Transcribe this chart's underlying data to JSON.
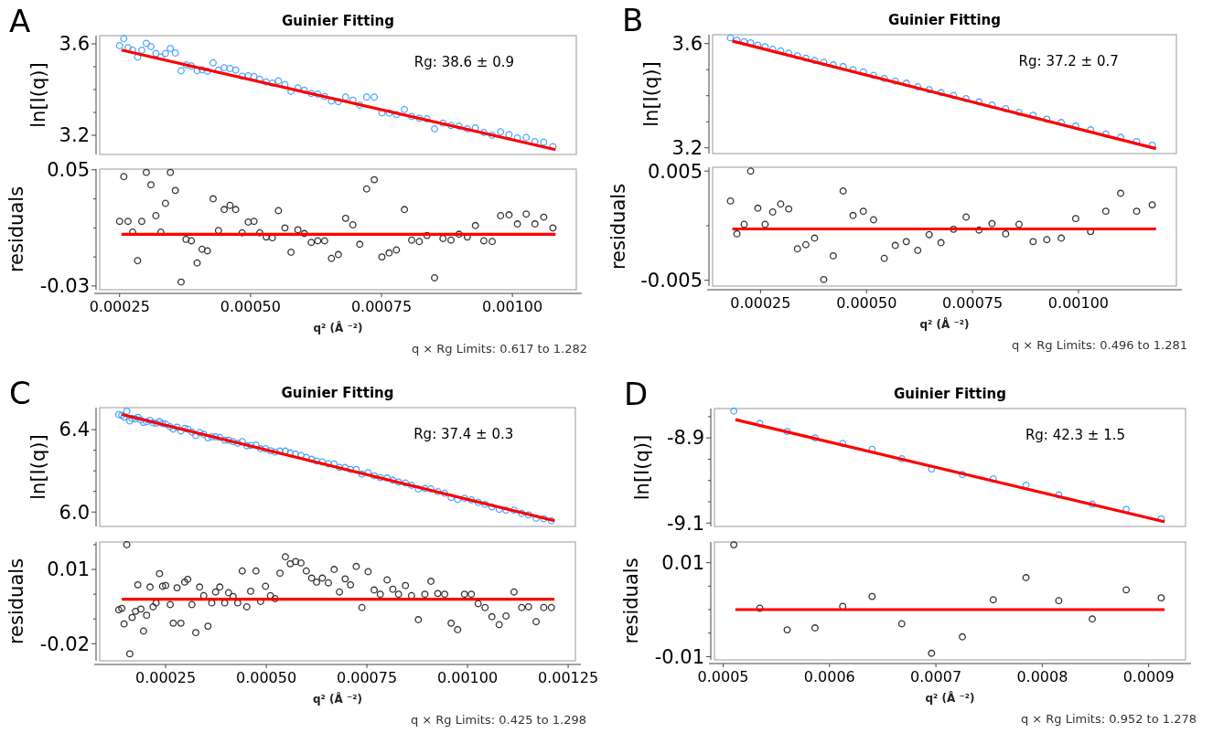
{
  "chart_data": [
    {
      "type": "scatter",
      "title": "Guinier Fitting",
      "ylabel": "ln[I(q)]",
      "annotations": [
        "A",
        "Rg: 38.6 ± 0.9"
      ],
      "tick_labels": "y",
      "marker": "circle",
      "xlim": [
        0.000212,
        0.001122
      ],
      "ylim": [
        3.116,
        3.636
      ],
      "yticks": [
        3.2,
        {
          "value": 3.3,
          "label": null
        },
        {
          "value": 3.4,
          "label": null
        },
        {
          "value": 3.5,
          "label": null
        },
        3.6
      ],
      "x": [
        0.00025,
        0.000258,
        0.000266,
        0.0002748,
        0.0002843,
        0.0002923,
        0.000301,
        0.0003098,
        0.0003192,
        0.0003287,
        0.0003375,
        0.0003469,
        0.0003564,
        0.0003674,
        0.0003768,
        0.000387,
        0.000398,
        0.0004074,
        0.0004176,
        0.0004286,
        0.0004388,
        0.0004497,
        0.0004607,
        0.0004716,
        0.000484,
        0.0004956,
        0.0005066,
        0.0005175,
        0.0005299,
        0.0005416,
        0.0005532,
        0.0005656,
        0.0005773,
        0.0005904,
        0.0006028,
        0.0006159,
        0.0006283,
        0.0006414,
        0.0006545,
        0.0006677,
        0.0006815,
        0.0006954,
        0.0007085,
        0.0007216,
        0.0007362,
        0.0007508,
        0.0007646,
        0.0007785,
        0.0007938,
        0.0008076,
        0.0008222,
        0.0008368,
        0.0008513,
        0.0008674,
        0.0008827,
        0.000898,
        0.000914,
        0.0009293,
        0.0009454,
        0.0009614,
        0.0009774,
        0.0009935,
        0.0010095,
        0.0010263,
        0.001043,
        0.0010598,
        0.0010773
      ],
      "series": [
        {
          "color": "#4da6ff",
          "values": [
            3.592,
            3.623,
            3.583,
            3.573,
            3.542,
            3.572,
            3.602,
            3.588,
            3.558,
            3.542,
            3.558,
            3.58,
            3.56,
            3.482,
            3.508,
            3.503,
            3.483,
            3.487,
            3.48,
            3.517,
            3.485,
            3.495,
            3.492,
            3.485,
            3.458,
            3.46,
            3.457,
            3.445,
            3.433,
            3.428,
            3.438,
            3.422,
            3.392,
            3.407,
            3.397,
            3.383,
            3.38,
            3.37,
            3.35,
            3.347,
            3.367,
            3.353,
            3.332,
            3.367,
            3.367,
            3.298,
            3.297,
            3.29,
            3.313,
            3.282,
            3.275,
            3.272,
            3.228,
            3.253,
            3.243,
            3.24,
            3.228,
            3.232,
            3.212,
            3.2,
            3.215,
            3.203,
            3.188,
            3.19,
            3.172,
            3.17,
            3.15
          ]
        },
        {
          "type": "line",
          "color": "#ff0000",
          "x": [
            0.0002536,
            0.0010824
          ],
          "values": [
            3.573,
            3.137
          ],
          "marker": "none"
        }
      ]
    },
    {
      "type": "scatter",
      "ylabel": "residuals",
      "xlabel": "q² (Å ⁻²)",
      "annotations": [
        "q × Rg Limits: 0.617 to 1.282"
      ],
      "marker": "circle",
      "xlim": [
        0.000212,
        0.001122
      ],
      "ylim": [
        -0.0326,
        0.0505
      ],
      "xticks": [
        0.00025,
        {
          "value": 0.0005,
          "label": "0.00050"
        },
        0.00075,
        {
          "value": 0.001,
          "label": "0.00100"
        }
      ],
      "yticks": [
        -0.03,
        {
          "value": -0.01,
          "label": null
        },
        {
          "value": 0.01,
          "label": null
        },
        {
          "value": 0.03,
          "label": null
        },
        0.05
      ],
      "x": [
        0.00025,
        0.000258,
        0.000266,
        0.0002748,
        0.0002843,
        0.0002923,
        0.000301,
        0.0003098,
        0.0003192,
        0.0003287,
        0.0003375,
        0.0003469,
        0.0003564,
        0.0003674,
        0.0003768,
        0.000387,
        0.000398,
        0.0004074,
        0.0004176,
        0.0004286,
        0.0004388,
        0.0004497,
        0.0004607,
        0.0004716,
        0.000484,
        0.0004956,
        0.0005066,
        0.0005175,
        0.0005299,
        0.0005416,
        0.0005532,
        0.0005656,
        0.0005773,
        0.0005904,
        0.0006028,
        0.0006159,
        0.0006283,
        0.0006414,
        0.0006545,
        0.0006677,
        0.0006815,
        0.0006954,
        0.0007085,
        0.0007216,
        0.0007362,
        0.0007508,
        0.0007646,
        0.0007785,
        0.0007938,
        0.0008076,
        0.0008222,
        0.0008368,
        0.0008513,
        0.0008674,
        0.0008827,
        0.000898,
        0.000914,
        0.0009293,
        0.0009454,
        0.0009614,
        0.0009774,
        0.0009935,
        0.0010095,
        0.0010263,
        0.001043,
        0.0010598,
        0.0010773
      ],
      "series": [
        {
          "color": "#333333",
          "values": [
            0.0145,
            0.0453,
            0.0145,
            0.0071,
            -0.0126,
            0.0145,
            0.0482,
            0.0397,
            0.0184,
            0.0071,
            0.0269,
            0.0482,
            0.0358,
            -0.0273,
            0.0021,
            0.0011,
            -0.0142,
            -0.0047,
            -0.0058,
            0.03,
            0.0082,
            0.0226,
            0.0255,
            0.0226,
            0.0066,
            0.014,
            0.0145,
            0.0066,
            0.0037,
            0.0032,
            0.0219,
            0.01,
            -0.0068,
            0.0087,
            0.0061,
            0.0,
            0.0011,
            0.0011,
            -0.011,
            -0.0084,
            0.0166,
            0.0121,
            -0.0013,
            0.0368,
            0.0432,
            -0.01,
            -0.0073,
            -0.0052,
            0.0226,
            0.0016,
            0.0006,
            0.0048,
            -0.0244,
            0.0027,
            0.0016,
            0.0056,
            0.0037,
            0.0116,
            0.0011,
            0.0006,
            0.0184,
            0.019,
            0.0127,
            0.0195,
            0.0127,
            0.0174,
            0.01
          ]
        },
        {
          "type": "line",
          "color": "#ff0000",
          "x": [
            0.0002536,
            0.0010824
          ],
          "values": [
            0.0056,
            0.0056
          ],
          "marker": "none"
        }
      ]
    },
    {
      "type": "scatter",
      "title": "Guinier Fitting",
      "ylabel": "ln[I(q)]",
      "annotations": [
        "B",
        "Rg: 37.2 ± 0.7"
      ],
      "tick_labels": "y",
      "marker": "circle",
      "xlim": [
        0.000137,
        0.001231
      ],
      "ylim": [
        3.178,
        3.634
      ],
      "yticks": [
        3.2,
        {
          "value": 3.3,
          "label": null
        },
        {
          "value": 3.4,
          "label": null
        },
        {
          "value": 3.5,
          "label": null
        },
        3.6
      ],
      "x": [
        0.0001791,
        0.0001943,
        0.0002114,
        0.0002267,
        0.0002437,
        0.0002608,
        0.0002787,
        0.0002976,
        0.0003165,
        0.0003371,
        0.0003569,
        0.0003775,
        0.0003991,
        0.0004215,
        0.0004449,
        0.0004682,
        0.0004925,
        0.0005167,
        0.0005419,
        0.0005679,
        0.0005939,
        0.0006209,
        0.0006478,
        0.0006757,
        0.0007053,
        0.0007349,
        0.0007655,
        0.000796,
        0.0008283,
        0.0008597,
        0.000893,
        0.0009253,
        0.0009594,
        0.0009935,
        0.0010286,
        0.0010645,
        0.0010995,
        0.0011372,
        0.001174
      ],
      "series": [
        {
          "color": "#4da6ff",
          "values": [
            3.622,
            3.613,
            3.607,
            3.603,
            3.594,
            3.588,
            3.578,
            3.572,
            3.563,
            3.553,
            3.544,
            3.535,
            3.528,
            3.518,
            3.512,
            3.5,
            3.491,
            3.478,
            3.466,
            3.456,
            3.448,
            3.434,
            3.423,
            3.412,
            3.401,
            3.389,
            3.376,
            3.364,
            3.35,
            3.336,
            3.325,
            3.31,
            3.297,
            3.284,
            3.269,
            3.253,
            3.24,
            3.224,
            3.21
          ]
        },
        {
          "type": "line",
          "color": "#ff0000",
          "x": [
            0.0001835,
            0.001183
          ],
          "values": [
            3.61,
            3.197
          ],
          "marker": "none"
        }
      ]
    },
    {
      "type": "scatter",
      "ylabel": "residuals",
      "xlabel": "q² (Å ⁻²)",
      "annotations": [
        "q × Rg Limits: 0.496 to 1.281"
      ],
      "marker": "circle",
      "xlim": [
        0.000137,
        0.001231
      ],
      "ylim": [
        -0.00553,
        0.00535
      ],
      "xticks": [
        0.00025,
        {
          "value": 0.0005,
          "label": "0.00050"
        },
        0.00075,
        {
          "value": 0.001,
          "label": "0.00100"
        }
      ],
      "yticks": [
        -0.005,
        {
          "value": 0,
          "label": null
        },
        0.005
      ],
      "x": [
        0.0001791,
        0.0001943,
        0.0002114,
        0.0002267,
        0.0002437,
        0.0002608,
        0.0002787,
        0.0002976,
        0.0003165,
        0.0003371,
        0.0003569,
        0.0003775,
        0.0003991,
        0.0004215,
        0.0004449,
        0.0004682,
        0.0004925,
        0.0005167,
        0.0005419,
        0.0005679,
        0.0005939,
        0.0006209,
        0.0006478,
        0.0006757,
        0.0007053,
        0.0007349,
        0.0007655,
        0.000796,
        0.0008283,
        0.0008597,
        0.000893,
        0.0009253,
        0.0009594,
        0.0009935,
        0.0010286,
        0.0010645,
        0.0010995,
        0.0011372,
        0.001174
      ],
      "series": [
        {
          "color": "#333333",
          "values": [
            0.00226,
            -0.00075,
            0.00012,
            0.005,
            0.0016,
            0.00012,
            0.00125,
            0.00198,
            0.00153,
            -0.00212,
            -0.00174,
            -0.00114,
            -0.00493,
            -0.00276,
            0.00318,
            0.00093,
            0.00132,
            0.00054,
            -0.003,
            -0.00181,
            -0.00146,
            -0.00226,
            -0.00082,
            -0.00156,
            -0.00033,
            0.00079,
            -0.0004,
            0.00019,
            -0.00075,
            0.00012,
            -0.00146,
            -0.00128,
            -0.00114,
            0.00065,
            -0.00054,
            0.00132,
            0.00296,
            0.00132,
            0.00191
          ]
        },
        {
          "type": "line",
          "color": "#ff0000",
          "x": [
            0.0001835,
            0.001183
          ],
          "values": [
            -0.0003,
            -0.0003
          ],
          "marker": "none"
        }
      ]
    },
    {
      "type": "scatter",
      "title": "Guinier Fitting",
      "ylabel": "ln[I(q)]",
      "annotations": [
        "C",
        "Rg: 37.4 ± 0.3"
      ],
      "tick_labels": "y",
      "marker": "circle",
      "xlim": [
        8.62e-05,
        0.001268
      ],
      "ylim": [
        5.93,
        6.507
      ],
      "yticks": [
        {
          "value": 6.0,
          "label": "6.0"
        },
        {
          "value": 6.1,
          "label": null
        },
        {
          "value": 6.2,
          "label": null
        },
        {
          "value": 6.3,
          "label": null
        },
        6.4
      ],
      "x": [
        0.0001335,
        0.0001411,
        0.0001468,
        0.0001534,
        0.000161,
        0.0001667,
        0.0001752,
        0.0001809,
        0.0001884,
        0.0001951,
        0.0002027,
        0.0002112,
        0.0002187,
        0.0002263,
        0.0002348,
        0.0002424,
        0.00025,
        0.0002614,
        0.0002689,
        0.0002784,
        0.0002879,
        0.0002974,
        0.0003049,
        0.0003153,
        0.0003248,
        0.0003343,
        0.0003447,
        0.0003551,
        0.0003646,
        0.0003741,
        0.0003845,
        0.0003968,
        0.0004063,
        0.0004176,
        0.000429,
        0.0004403,
        0.0004517,
        0.0004612,
        0.0004744,
        0.0004858,
        0.0004981,
        0.0005104,
        0.0005218,
        0.0005341,
        0.0005474,
        0.0005597,
        0.0005729,
        0.0005862,
        0.0005995,
        0.0006127,
        0.000625,
        0.0006392,
        0.0006544,
        0.0006686,
        0.0006818,
        0.000696,
        0.0007093,
        0.0007235,
        0.0007377,
        0.0007529,
        0.000768,
        0.0007832,
        0.0008002,
        0.0008144,
        0.0008286,
        0.0008457,
        0.0008608,
        0.0008779,
        0.000894,
        0.0009091,
        0.0009262,
        0.0009432,
        0.0009593,
        0.0009754,
        0.0009924,
        0.0010095,
        0.0010265,
        0.0010436,
        0.0010606,
        0.0010786,
        0.0010957,
        0.0011156,
        0.0011345,
        0.0011515,
        0.0011705,
        0.0011894,
        0.0012083
      ],
      "series": [
        {
          "color": "#4da6ff",
          "values": [
            6.473,
            6.47,
            6.461,
            6.49,
            6.442,
            6.454,
            6.452,
            6.46,
            6.447,
            6.435,
            6.438,
            6.445,
            6.433,
            6.431,
            6.439,
            6.43,
            6.427,
            6.414,
            6.403,
            6.412,
            6.394,
            6.406,
            6.403,
            6.388,
            6.372,
            6.386,
            6.377,
            6.36,
            6.365,
            6.365,
            6.362,
            6.349,
            6.349,
            6.342,
            6.334,
            6.342,
            6.322,
            6.323,
            6.325,
            6.307,
            6.308,
            6.298,
            6.291,
            6.296,
            6.296,
            6.287,
            6.282,
            6.275,
            6.265,
            6.256,
            6.248,
            6.243,
            6.234,
            6.233,
            6.217,
            6.216,
            6.207,
            6.207,
            6.184,
            6.191,
            6.176,
            6.167,
            6.165,
            6.154,
            6.146,
            6.141,
            6.13,
            6.112,
            6.114,
            6.112,
            6.099,
            6.091,
            6.071,
            6.061,
            6.067,
            6.059,
            6.047,
            6.037,
            6.025,
            6.013,
            6.009,
            6.009,
            5.993,
            5.986,
            5.97,
            5.967,
            5.958
          ]
        },
        {
          "type": "line",
          "color": "#ff0000",
          "x": [
            0.0001411,
            0.0012159
          ],
          "values": [
            6.474,
            5.958
          ],
          "marker": "none"
        }
      ]
    },
    {
      "type": "scatter",
      "ylabel": "residuals",
      "xlabel": "q² (Å ⁻²)",
      "annotations": [
        "q × Rg Limits: 0.425 to 1.298"
      ],
      "marker": "circle",
      "xlim": [
        8.62e-05,
        0.001268
      ],
      "ylim": [
        -0.0269,
        0.0211
      ],
      "xticks": [
        0.00025,
        {
          "value": 0.0005,
          "label": "0.00050"
        },
        0.00075,
        {
          "value": 0.001,
          "label": "0.00100"
        },
        {
          "value": 0.00125,
          "label": "0.00125"
        }
      ],
      "yticks": [
        -0.02,
        {
          "value": -0.01,
          "label": null
        },
        {
          "value": 0,
          "label": null
        },
        0.01,
        {
          "value": 0.02,
          "label": null
        }
      ],
      "x": [
        0.0001335,
        0.0001411,
        0.0001468,
        0.0001534,
        0.000161,
        0.0001667,
        0.0001752,
        0.0001809,
        0.0001884,
        0.0001951,
        0.0002027,
        0.0002112,
        0.0002187,
        0.0002263,
        0.0002348,
        0.0002424,
        0.00025,
        0.0002614,
        0.0002689,
        0.0002784,
        0.0002879,
        0.0002974,
        0.0003049,
        0.0003153,
        0.0003248,
        0.0003343,
        0.0003447,
        0.0003551,
        0.0003646,
        0.0003741,
        0.0003845,
        0.0003968,
        0.0004063,
        0.0004176,
        0.000429,
        0.0004403,
        0.0004517,
        0.0004612,
        0.0004744,
        0.0004858,
        0.0004981,
        0.0005104,
        0.0005218,
        0.0005341,
        0.0005474,
        0.0005597,
        0.0005729,
        0.0005862,
        0.0005995,
        0.0006127,
        0.000625,
        0.0006392,
        0.0006544,
        0.0006686,
        0.0006818,
        0.000696,
        0.0007093,
        0.0007235,
        0.0007377,
        0.0007529,
        0.000768,
        0.0007832,
        0.0008002,
        0.0008144,
        0.0008286,
        0.0008457,
        0.0008608,
        0.0008779,
        0.000894,
        0.0009091,
        0.0009262,
        0.0009432,
        0.0009593,
        0.0009754,
        0.0009924,
        0.0010095,
        0.0010265,
        0.0010436,
        0.0010606,
        0.0010786,
        0.0010957,
        0.0011156,
        0.0011345,
        0.0011515,
        0.0011705,
        0.0011894,
        0.0012083
      ],
      "series": [
        {
          "color": "#333333",
          "values": [
            -0.0063,
            -0.0057,
            -0.012,
            0.02,
            -0.0241,
            -0.0094,
            -0.0069,
            0.0038,
            -0.006,
            -0.0149,
            -0.0085,
            0.0029,
            -0.0051,
            -0.0035,
            0.0083,
            0.0032,
            0.0035,
            -0.0042,
            -0.0117,
            0.0026,
            -0.0117,
            0.0049,
            0.006,
            -0.0042,
            -0.0155,
            0.0029,
            -0.0006,
            -0.0129,
            -0.0035,
            0.0009,
            0.0029,
            -0.0035,
            0.0006,
            -0.0009,
            -0.0035,
            0.0094,
            -0.0051,
            0.0012,
            0.0094,
            -0.0029,
            0.0032,
            -0.0006,
            -0.0018,
            0.0085,
            0.0151,
            0.0123,
            0.0132,
            0.0126,
            0.0094,
            0.0065,
            0.0049,
            0.0065,
            0.0046,
            0.01,
            0.0009,
            0.0062,
            0.0038,
            0.0112,
            -0.0054,
            0.0091,
            0.0017,
            0.0,
            0.0058,
            0.002,
            0.0,
            0.0035,
            -0.0006,
            -0.0103,
            0.0,
            0.0052,
            0.0003,
            0.0,
            -0.0117,
            -0.0143,
            0.0,
            0.0,
            -0.0038,
            -0.0054,
            -0.0091,
            -0.0123,
            -0.0088,
            0.0009,
            -0.0054,
            -0.0051,
            -0.0111,
            -0.0054,
            -0.0054
          ]
        },
        {
          "type": "line",
          "color": "#ff0000",
          "x": [
            0.0001411,
            0.0012159
          ],
          "values": [
            -0.002,
            -0.002
          ],
          "marker": "none"
        }
      ]
    },
    {
      "type": "scatter",
      "title": "Guinier Fitting",
      "ylabel": "ln[I(q)]",
      "annotations": [
        "D",
        "Rg: 42.3 ± 1.5"
      ],
      "tick_labels": "y",
      "marker": "circle",
      "xlim": [
        0.0004918,
        0.0009347
      ],
      "ylim": [
        -9.108,
        -8.831
      ],
      "yticks": [
        -9.1,
        {
          "value": -9.05,
          "label": null
        },
        {
          "value": -9.0,
          "label": null
        },
        {
          "value": -8.95,
          "label": null
        },
        -8.9,
        {
          "value": -8.85,
          "label": null
        }
      ],
      "x": [
        0.00051,
        0.0005344,
        0.0005602,
        0.0005863,
        0.0006124,
        0.00064,
        0.0006679,
        0.0006959,
        0.0007249,
        0.0007539,
        0.0007847,
        0.0008155,
        0.000847,
        0.0008789,
        0.0009118
      ],
      "series": [
        {
          "color": "#4da6ff",
          "values": [
            -8.837,
            -8.866,
            -8.885,
            -8.9,
            -8.913,
            -8.927,
            -8.949,
            -8.973,
            -8.986,
            -8.996,
            -9.011,
            -9.034,
            -9.056,
            -9.068,
            -9.09
          ]
        },
        {
          "type": "line",
          "color": "#ff0000",
          "x": [
            0.0005115,
            0.000915
          ],
          "values": [
            -8.857,
            -9.097
          ],
          "marker": "none"
        }
      ]
    },
    {
      "type": "scatter",
      "ylabel": "residuals",
      "xlabel": "q² (Å ⁻²)",
      "annotations": [
        "q × Rg Limits: 0.952 to 1.278"
      ],
      "marker": "circle",
      "xlim": [
        0.0004918,
        0.0009347
      ],
      "ylim": [
        -0.0107,
        0.0144
      ],
      "xticks": [
        0.0005,
        0.0006,
        0.0007,
        0.0008,
        0.0009
      ],
      "yticks": [
        -0.01,
        {
          "value": -0.005,
          "label": null
        },
        {
          "value": 0,
          "label": null
        },
        {
          "value": 0.005,
          "label": null
        },
        0.01
      ],
      "x": [
        0.00051,
        0.0005344,
        0.0005602,
        0.0005863,
        0.0006124,
        0.00064,
        0.0006679,
        0.0006959,
        0.0007249,
        0.0007539,
        0.0007847,
        0.0008155,
        0.000847,
        0.0008789,
        0.0009118
      ],
      "series": [
        {
          "color": "#333333",
          "values": [
            0.0138,
            0.0003,
            -0.0043,
            -0.0039,
            0.0007,
            0.0028,
            -0.003,
            -0.0093,
            -0.0058,
            0.0021,
            0.0068,
            0.0019,
            -0.002,
            0.0042,
            0.0025
          ]
        },
        {
          "type": "line",
          "color": "#ff0000",
          "x": [
            0.0005115,
            0.000915
          ],
          "values": [
            0.0,
            0.0
          ],
          "marker": "none"
        }
      ]
    }
  ]
}
